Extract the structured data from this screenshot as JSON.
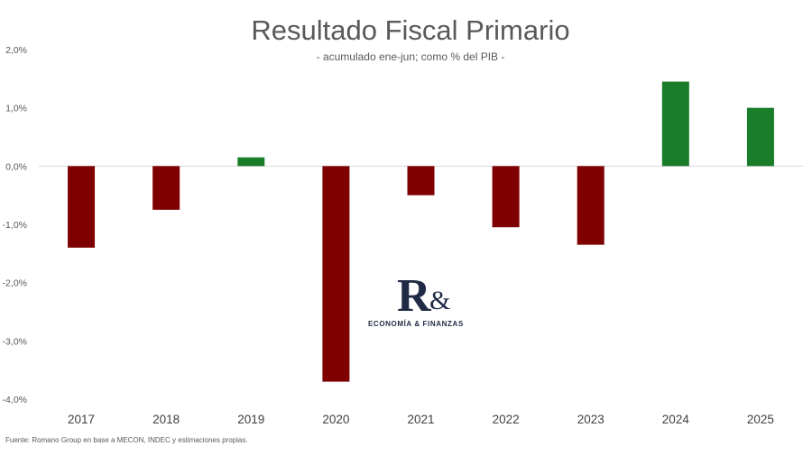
{
  "chart_data": {
    "type": "bar",
    "title": "Resultado Fiscal Primario",
    "subtitle": "- acumulado ene-jun; como % del PIB -",
    "categories": [
      "2017",
      "2018",
      "2019",
      "2020",
      "2021",
      "2022",
      "2023",
      "2024",
      "2025"
    ],
    "values": [
      -1.4,
      -0.75,
      0.15,
      -3.7,
      -0.5,
      -1.05,
      -1.35,
      1.45,
      1.0
    ],
    "ylim": [
      -4,
      2
    ],
    "yticks": [
      2,
      1,
      0,
      -1,
      -2,
      -3,
      -4
    ],
    "ytick_labels": [
      "2,0%",
      "1,0%",
      "0,0%",
      "-1,0%",
      "-2,0%",
      "-3,0%",
      "-4,0%"
    ],
    "colors": {
      "positive": "#1a7d2a",
      "negative": "#7f0000",
      "zero_line": "#d9d9d9"
    },
    "grid": false,
    "legend": "none"
  },
  "logo": {
    "mark": "R",
    "amp": "&",
    "text": "ECONOMÍA & FINANZAS"
  },
  "source": "Fuente: Romano Group en base a MECON, INDEC y estimaciones propias."
}
